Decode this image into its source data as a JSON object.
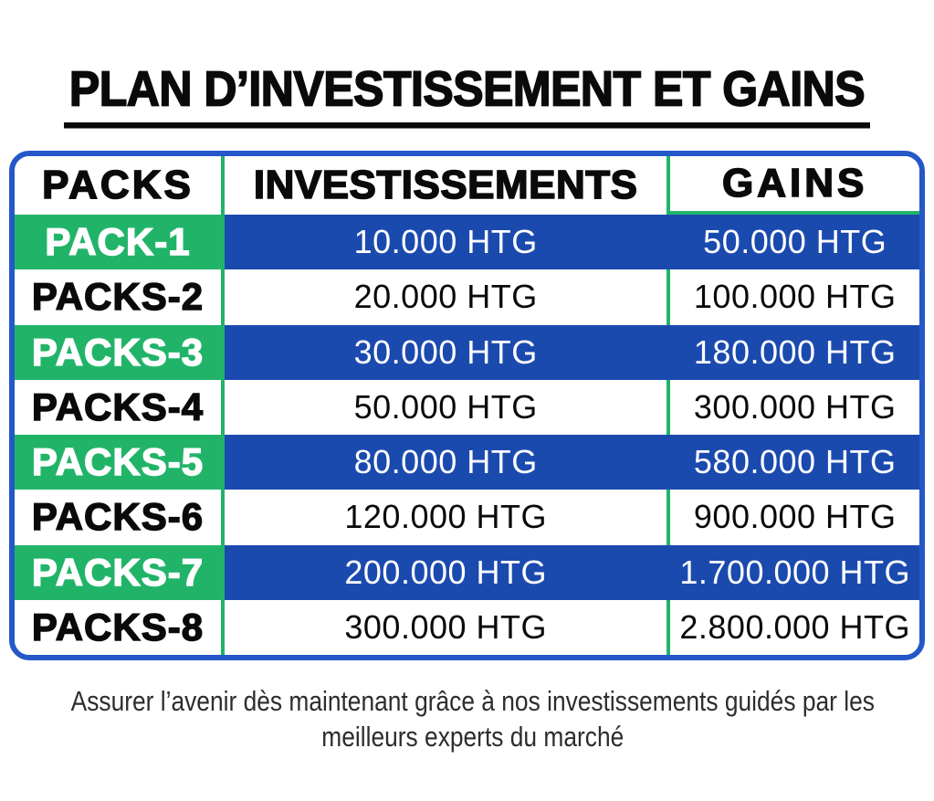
{
  "title": "PLAN D’INVESTISSEMENT ET GAINS",
  "table": {
    "headers": [
      "PACKS",
      "INVESTISSEMENTS",
      "GAINS"
    ],
    "rows": [
      {
        "pack": "PACK-1",
        "investment": "10.000 HTG",
        "gain": "50.000 HTG",
        "highlighted": true
      },
      {
        "pack": "PACKS-2",
        "investment": "20.000 HTG",
        "gain": "100.000 HTG",
        "highlighted": false
      },
      {
        "pack": "PACKS-3",
        "investment": "30.000 HTG",
        "gain": "180.000 HTG",
        "highlighted": true
      },
      {
        "pack": "PACKS-4",
        "investment": "50.000 HTG",
        "gain": "300.000 HTG",
        "highlighted": false
      },
      {
        "pack": "PACKS-5",
        "investment": "80.000 HTG",
        "gain": "580.000 HTG",
        "highlighted": true
      },
      {
        "pack": "PACKS-6",
        "investment": "120.000 HTG",
        "gain": "900.000 HTG",
        "highlighted": false
      },
      {
        "pack": "PACKS-7",
        "investment": "200.000 HTG",
        "gain": "1.700.000 HTG",
        "highlighted": true
      },
      {
        "pack": "PACKS-8",
        "investment": "300.000 HTG",
        "gain": "2.800.000 HTG",
        "highlighted": false
      }
    ]
  },
  "footer": {
    "line1": "Assurer l’avenir dès maintenant grâce à nos investissements guidés par les",
    "line2": "meilleurs experts du marché"
  },
  "colors": {
    "green": "#21b469",
    "blue_fill": "#1b4aaf",
    "blue_border": "#2458c8",
    "text": "#0a0a0a"
  }
}
